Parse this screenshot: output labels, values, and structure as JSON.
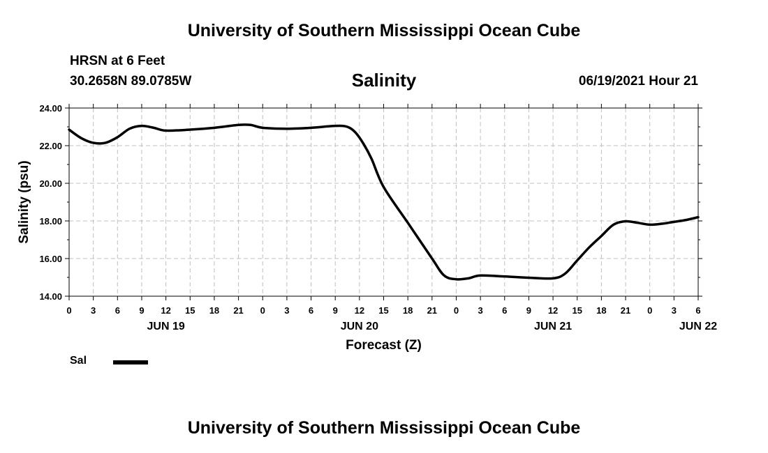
{
  "header": {
    "title": "University of Southern Mississippi Ocean Cube",
    "station": "HRSN at 6 Feet",
    "coords": "30.2658N  89.0785W",
    "issue_time": "06/19/2021 Hour 21"
  },
  "footer": {
    "title": "University of Southern Mississippi Ocean Cube"
  },
  "chart_data": {
    "type": "line",
    "title": "Salinity",
    "xlabel": "Forecast (Z)",
    "ylabel": "Salinity (psu)",
    "x_unit": "hours since 2021-06-19 00Z",
    "xlim": [
      0,
      78
    ],
    "ylim": [
      14,
      24
    ],
    "y_ticks": [
      "14.00",
      "16.00",
      "18.00",
      "20.00",
      "22.00",
      "24.00"
    ],
    "x_tick_labels": [
      "0",
      "3",
      "6",
      "9",
      "12",
      "15",
      "18",
      "21",
      "0",
      "3",
      "6",
      "9",
      "12",
      "15",
      "18",
      "21",
      "0",
      "3",
      "6",
      "9",
      "12",
      "15",
      "18",
      "21",
      "0",
      "3",
      "6"
    ],
    "date_labels": [
      {
        "label": "JUN 19",
        "hour": 12
      },
      {
        "label": "JUN 20",
        "hour": 36
      },
      {
        "label": "JUN 21",
        "hour": 60
      },
      {
        "label": "JUN 22",
        "hour": 78
      }
    ],
    "grid": true,
    "legend": {
      "placement": "bottom-left"
    },
    "series": [
      {
        "name": "Sal",
        "color": "#000000",
        "x": [
          0,
          1.5,
          3,
          4.5,
          6,
          7.5,
          9,
          10.5,
          12,
          15,
          18,
          21,
          22.5,
          24,
          27,
          30,
          33,
          34.5,
          35.5,
          36.5,
          37.5,
          39,
          42,
          45,
          46.5,
          48,
          49.5,
          51,
          54,
          57,
          60,
          61.5,
          63,
          64.5,
          66,
          67.5,
          69,
          70.5,
          72,
          73.5,
          75,
          76.5,
          78
        ],
        "values": [
          22.85,
          22.4,
          22.15,
          22.15,
          22.45,
          22.9,
          23.05,
          22.95,
          22.8,
          22.85,
          22.95,
          23.1,
          23.1,
          22.95,
          22.9,
          22.95,
          23.05,
          23.0,
          22.7,
          22.1,
          21.3,
          19.8,
          17.9,
          16.0,
          15.1,
          14.9,
          14.95,
          15.1,
          15.05,
          14.98,
          14.95,
          15.2,
          15.9,
          16.6,
          17.2,
          17.8,
          17.98,
          17.9,
          17.8,
          17.85,
          17.95,
          18.05,
          18.2
        ]
      }
    ]
  }
}
